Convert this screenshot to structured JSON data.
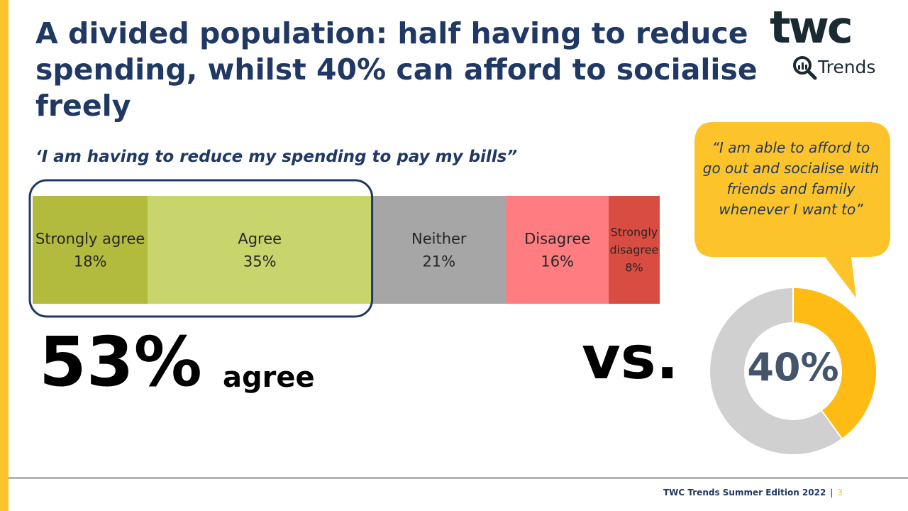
{
  "title": "A divided population: half having to reduce spending, whilst 40% can afford to socialise freely",
  "logo": {
    "word": "twc",
    "sub": "Trends"
  },
  "quote_left": "‘I am having to reduce my spending to pay my bills”",
  "big_stat": {
    "value": "53%",
    "label": "agree"
  },
  "vs_text": "vs.",
  "quote_right": "“I am able to afford to go out and socialise with friends and family whenever I want to”",
  "donut_label": "40%",
  "footer": {
    "text": "TWC Trends Summer Edition 2022",
    "separator": "|",
    "page": "3"
  },
  "colors": {
    "title": "#1f3864",
    "accent_yellow": "#fdc32a",
    "strongly_agree": "#b2bb3d",
    "agree": "#c8d46c",
    "neither": "#a6a6a6",
    "disagree": "#ff7c80",
    "strongly_disagree": "#d94c42",
    "highlight_border": "#1f3864",
    "donut_fill": "#fdbb13",
    "donut_rest": "#d0d0d0"
  },
  "chart_data": [
    {
      "type": "bar",
      "orientation": "horizontal-stacked",
      "categories": [
        "Strongly agree",
        "Agree",
        "Neither",
        "Disagree",
        "Strongly disagree"
      ],
      "values": [
        18,
        35,
        21,
        16,
        8
      ],
      "value_labels": [
        "18%",
        "35%",
        "21%",
        "16%",
        "8%"
      ],
      "display_labels": [
        [
          "Strongly agree"
        ],
        [
          "Agree"
        ],
        [
          "Neither"
        ],
        [
          "Disagree"
        ],
        [
          "Strongly",
          "disagree"
        ]
      ],
      "highlighted": [
        "Strongly agree",
        "Agree"
      ],
      "title": "‘I am having to reduce my spending to pay my bills”"
    },
    {
      "type": "pie",
      "style": "donut",
      "values": [
        40,
        60
      ],
      "center_label": "40%",
      "title": "“I am able to afford to go out and socialise with friends and family whenever I want to”"
    }
  ]
}
